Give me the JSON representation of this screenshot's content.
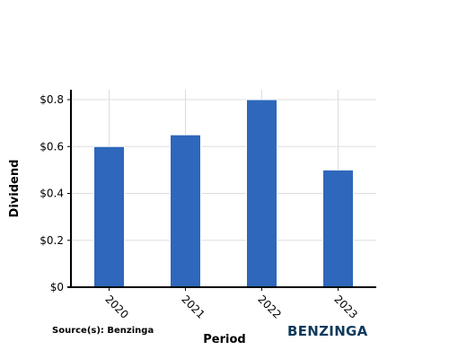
{
  "chart_data": {
    "type": "bar",
    "categories": [
      "2020",
      "2021",
      "2022",
      "2023"
    ],
    "values": [
      0.6,
      0.65,
      0.8,
      0.5
    ],
    "title": "",
    "xlabel": "Period",
    "ylabel": "Dividend",
    "ylim": [
      0,
      0.8
    ],
    "yticks": [
      0,
      0.2,
      0.4,
      0.6,
      0.8
    ],
    "ytick_labels": [
      "$0",
      "$0.2",
      "$0.4",
      "$0.6",
      "$0.8"
    ],
    "grid": true,
    "bar_color": "#2e67bb"
  },
  "footer": {
    "source": "Source(s): Benzinga",
    "brand": "BENZINGA",
    "brand_color": "#0e3a5c"
  }
}
